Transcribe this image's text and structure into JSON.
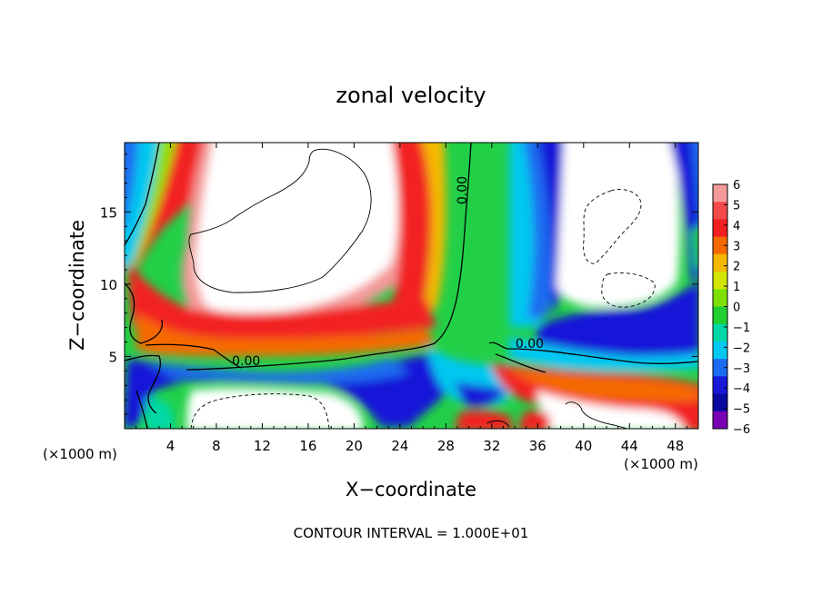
{
  "chart_data": {
    "type": "heatmap",
    "title": "zonal velocity",
    "xlabel": "X−coordinate",
    "ylabel": "Z−coordinate",
    "x_unit_left": "(×1000 m)",
    "x_unit_right": "(×1000 m)",
    "footer": "CONTOUR INTERVAL = 1.000E+01",
    "xlim": [
      0,
      50
    ],
    "ylim": [
      0,
      19.8
    ],
    "x_ticks": [
      4,
      8,
      12,
      16,
      20,
      24,
      28,
      32,
      36,
      40,
      44,
      48
    ],
    "x_tick_labels": [
      "4",
      "8",
      "12",
      "16",
      "20",
      "24",
      "28",
      "32",
      "36",
      "40",
      "44",
      "48"
    ],
    "y_ticks": [
      5,
      10,
      15
    ],
    "y_tick_labels": [
      "5",
      "10",
      "15"
    ],
    "colorbar": {
      "min": -6,
      "max": 6,
      "tick_values": [
        6,
        5,
        4,
        3,
        2,
        1,
        0,
        -1,
        -2,
        -3,
        -4,
        -5,
        -6
      ],
      "tick_labels": [
        "6",
        "5",
        "4",
        "3",
        "2",
        "1",
        "0",
        "−1",
        "−2",
        "−3",
        "−4",
        "−5",
        "−6"
      ],
      "colors": [
        "#f49a9a",
        "#f44a4a",
        "#f22020",
        "#f56a00",
        "#f5b800",
        "#d2e600",
        "#7ee000",
        "#20d030",
        "#00d8a8",
        "#00c8f0",
        "#1a6cf0",
        "#1818d8",
        "#0a0aa0",
        "#7a00b4"
      ]
    },
    "contour_labels": [
      {
        "text": "0.00",
        "x": 29.8,
        "y": 16.5,
        "angle": -90
      },
      {
        "text": "0.00",
        "x": 10.6,
        "y": 4.4,
        "angle": 0
      },
      {
        "text": "0.00",
        "x": 35.3,
        "y": 5.6,
        "angle": 0
      }
    ]
  }
}
